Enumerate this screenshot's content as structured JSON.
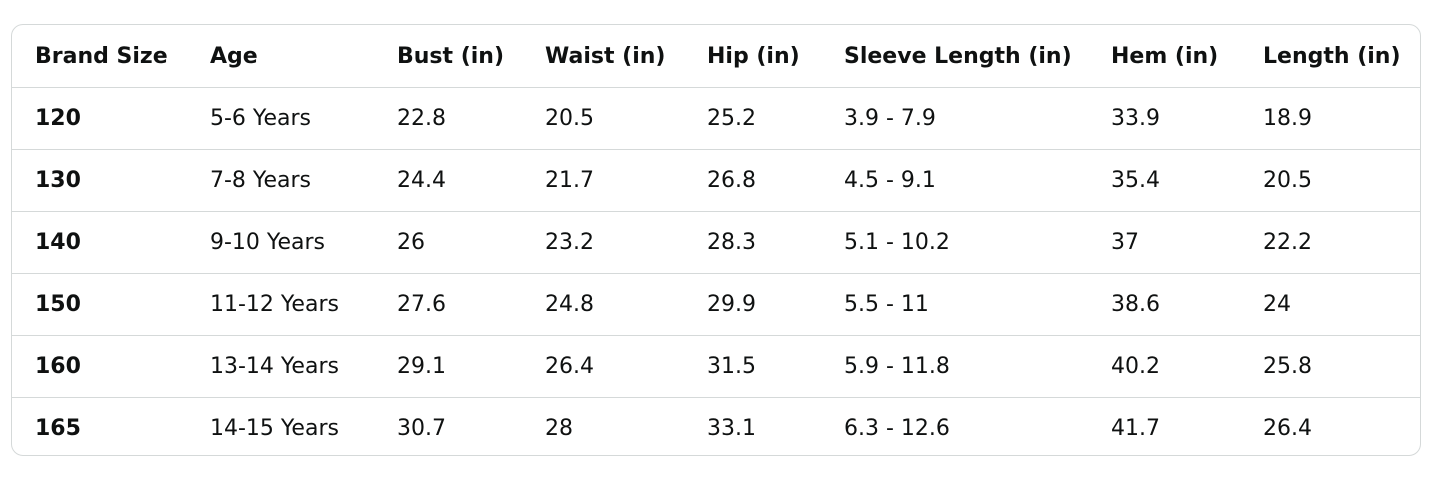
{
  "table": {
    "headers": [
      "Brand Size",
      "Age",
      "Bust (in)",
      "Waist (in)",
      "Hip (in)",
      "Sleeve Length (in)",
      "Hem (in)",
      "Length (in)"
    ],
    "rows": [
      [
        "120",
        "5-6 Years",
        "22.8",
        "20.5",
        "25.2",
        "3.9 - 7.9",
        "33.9",
        "18.9"
      ],
      [
        "130",
        "7-8 Years",
        "24.4",
        "21.7",
        "26.8",
        "4.5 - 9.1",
        "35.4",
        "20.5"
      ],
      [
        "140",
        "9-10 Years",
        "26",
        "23.2",
        "28.3",
        "5.1 - 10.2",
        "37",
        "22.2"
      ],
      [
        "150",
        "11-12 Years",
        "27.6",
        "24.8",
        "29.9",
        "5.5 - 11",
        "38.6",
        "24"
      ],
      [
        "160",
        "13-14 Years",
        "29.1",
        "26.4",
        "31.5",
        "5.9 - 11.8",
        "40.2",
        "25.8"
      ],
      [
        "165",
        "14-15 Years",
        "30.7",
        "28",
        "33.1",
        "6.3 - 12.6",
        "41.7",
        "26.4"
      ]
    ]
  },
  "colors": {
    "border": "#d5d9d9",
    "text": "#0f1111",
    "background": "#ffffff"
  }
}
